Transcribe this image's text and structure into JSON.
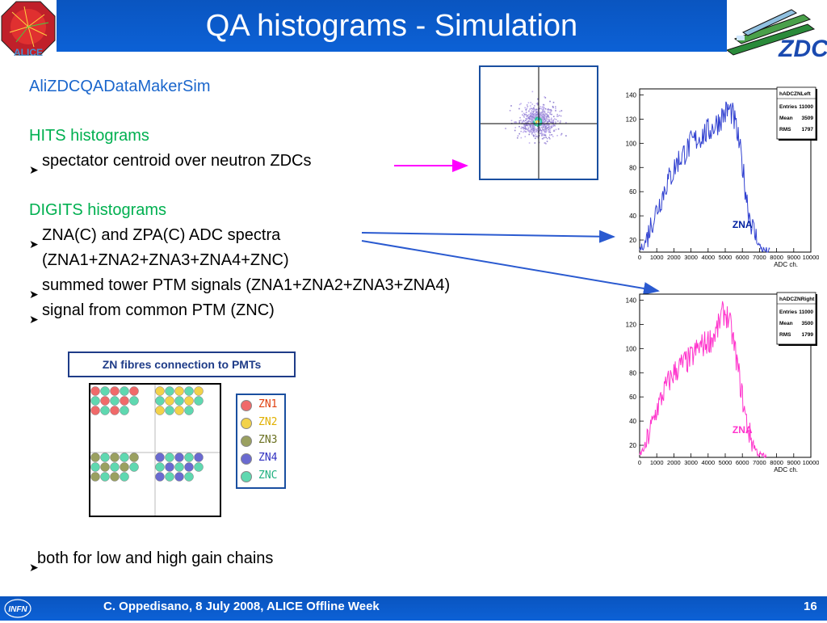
{
  "slide": {
    "title": "QA histograms - Simulation",
    "heading": "AliZDCQADataMakerSim",
    "hits_heading": "HITS histograms",
    "hits_item": "spectator centroid over neutron ZDCs",
    "digits_heading": "DIGITS histograms",
    "digits_items": [
      "ZNA(C) and ZPA(C) ADC spectra",
      "(ZNA1+ZNA2+ZNA3+ZNA4+ZNC)",
      "summed tower PTM signals (ZNA1+ZNA2+ZNA3+ZNA4)",
      "signal from common PTM (ZNC)"
    ],
    "fibres_caption": "ZN fibres connection to PMTs",
    "gain_note": "both for low and high gain chains",
    "footer": "C. Oppedisano, 8 July 2008, ALICE Offline Week",
    "page_number": "16",
    "logo_left_text": "ALICE",
    "logo_right_text": "ZDC",
    "logo_bottom_text": "INFN"
  },
  "legend": [
    {
      "label": "ZN1",
      "color": "#f06a6a",
      "text_color": "#e04010"
    },
    {
      "label": "ZN2",
      "color": "#f2d24a",
      "text_color": "#e0b000"
    },
    {
      "label": "ZN3",
      "color": "#9aa060",
      "text_color": "#6a7020"
    },
    {
      "label": "ZN4",
      "color": "#6a6ad0",
      "text_color": "#3030c0"
    },
    {
      "label": "ZNC",
      "color": "#5fd8b0",
      "text_color": "#20b080"
    }
  ],
  "chart_data": [
    {
      "type": "bar",
      "label": "ZNA",
      "stats_box": {
        "title": "hADCZNLeft",
        "entries_label": "Entries",
        "entries": "11000",
        "mean_label": "Mean",
        "mean": "3509",
        "rms_label": "RMS",
        "rms": "1797"
      },
      "xlabel": "ADC ch.",
      "xlim": [
        0,
        10000
      ],
      "ylim": [
        10,
        145
      ],
      "xticks": [
        "0",
        "1000",
        "2000",
        "3000",
        "4000",
        "5000",
        "6000",
        "7000",
        "8000",
        "9000",
        "10000"
      ],
      "yticks": [
        "20",
        "40",
        "60",
        "80",
        "100",
        "120",
        "140"
      ],
      "color": "#3040d0",
      "shape_points": [
        [
          0,
          12
        ],
        [
          200,
          15
        ],
        [
          400,
          20
        ],
        [
          600,
          30
        ],
        [
          800,
          38
        ],
        [
          1000,
          45
        ],
        [
          1200,
          52
        ],
        [
          1400,
          60
        ],
        [
          1600,
          68
        ],
        [
          1800,
          72
        ],
        [
          2000,
          78
        ],
        [
          2200,
          85
        ],
        [
          2400,
          88
        ],
        [
          2600,
          92
        ],
        [
          2800,
          95
        ],
        [
          3000,
          100
        ],
        [
          3200,
          102
        ],
        [
          3400,
          104
        ],
        [
          3600,
          106
        ],
        [
          3800,
          108
        ],
        [
          4000,
          110
        ],
        [
          4200,
          112
        ],
        [
          4400,
          115
        ],
        [
          4600,
          118
        ],
        [
          4800,
          122
        ],
        [
          5000,
          125
        ],
        [
          5200,
          128
        ],
        [
          5400,
          125
        ],
        [
          5600,
          115
        ],
        [
          5800,
          100
        ],
        [
          6000,
          82
        ],
        [
          6200,
          60
        ],
        [
          6400,
          42
        ],
        [
          6600,
          30
        ],
        [
          6800,
          22
        ],
        [
          7000,
          15
        ],
        [
          7200,
          12
        ],
        [
          7400,
          11
        ],
        [
          7600,
          10
        ]
      ]
    },
    {
      "type": "bar",
      "label": "ZNA",
      "stats_box": {
        "title": "hADCZNRight",
        "entries_label": "Entries",
        "entries": "11000",
        "mean_label": "Mean",
        "mean": "3500",
        "rms_label": "RMS",
        "rms": "1799"
      },
      "xlabel": "ADC ch.",
      "xlim": [
        0,
        10000
      ],
      "ylim": [
        10,
        145
      ],
      "xticks": [
        "0",
        "1000",
        "2000",
        "3000",
        "4000",
        "5000",
        "6000",
        "7000",
        "8000",
        "9000",
        "10000"
      ],
      "yticks": [
        "20",
        "40",
        "60",
        "80",
        "100",
        "120",
        "140"
      ],
      "color": "#ff33cc",
      "shape_points": [
        [
          0,
          12
        ],
        [
          200,
          16
        ],
        [
          400,
          22
        ],
        [
          600,
          32
        ],
        [
          800,
          40
        ],
        [
          1000,
          50
        ],
        [
          1200,
          56
        ],
        [
          1400,
          64
        ],
        [
          1600,
          70
        ],
        [
          1800,
          75
        ],
        [
          2000,
          80
        ],
        [
          2200,
          83
        ],
        [
          2400,
          86
        ],
        [
          2600,
          88
        ],
        [
          2800,
          90
        ],
        [
          3000,
          92
        ],
        [
          3200,
          96
        ],
        [
          3400,
          100
        ],
        [
          3600,
          102
        ],
        [
          3800,
          104
        ],
        [
          4000,
          106
        ],
        [
          4200,
          108
        ],
        [
          4400,
          112
        ],
        [
          4600,
          118
        ],
        [
          4800,
          128
        ],
        [
          5000,
          130
        ],
        [
          5200,
          124
        ],
        [
          5400,
          112
        ],
        [
          5600,
          96
        ],
        [
          5800,
          78
        ],
        [
          6000,
          60
        ],
        [
          6200,
          42
        ],
        [
          6400,
          30
        ],
        [
          6600,
          22
        ],
        [
          6800,
          16
        ],
        [
          7000,
          12
        ],
        [
          7200,
          11
        ],
        [
          7400,
          10
        ]
      ]
    }
  ],
  "icons": {
    "bullet": "bullet-arrow-icon",
    "arrows": "pointer-arrow-icon"
  }
}
